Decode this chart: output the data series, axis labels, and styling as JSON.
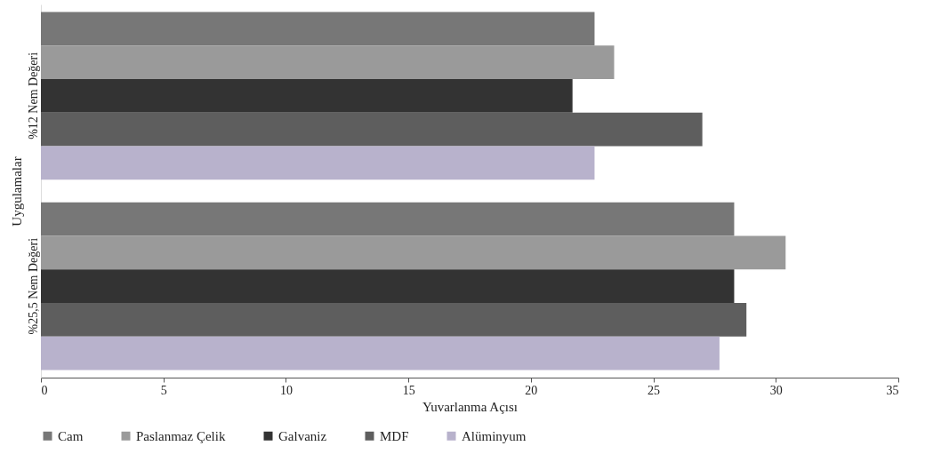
{
  "chart_data": {
    "type": "bar",
    "orientation": "horizontal",
    "xlabel": "Yuvarlanma Açısı",
    "ylabel": "Uygulamalar",
    "categories": [
      "%12 Nem Değeri",
      "%25,5 Nem Değeri"
    ],
    "series": [
      {
        "name": "Cam",
        "color": "#777777",
        "values": [
          22.6,
          28.3
        ]
      },
      {
        "name": "Paslanmaz Çelik",
        "color": "#9a9a9a",
        "values": [
          23.4,
          30.4
        ]
      },
      {
        "name": "Galvaniz",
        "color": "#333333",
        "values": [
          21.7,
          28.3
        ]
      },
      {
        "name": "MDF",
        "color": "#5e5e5e",
        "values": [
          27.0,
          28.8
        ]
      },
      {
        "name": "Alüminyum",
        "color": "#b8b2cc",
        "values": [
          22.6,
          27.7
        ]
      }
    ],
    "xlim": [
      0,
      35
    ],
    "xticks": [
      0,
      5,
      10,
      15,
      20,
      25,
      30,
      35
    ],
    "grid": false,
    "legend": "bottom"
  }
}
